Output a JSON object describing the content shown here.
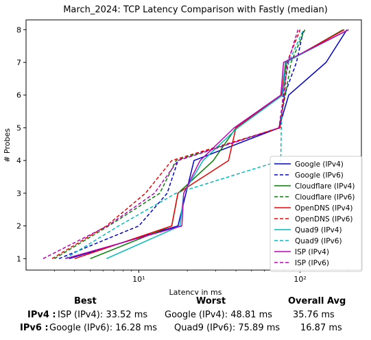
{
  "chart_data": {
    "type": "line",
    "title": "March_2024: TCP Latency Comparison with Fastly (median)",
    "xlabel": "Latency in ms",
    "ylabel": "# Probes",
    "xscale": "log",
    "xlim": [
      2.0,
      240
    ],
    "ylim": [
      0.65,
      8.3
    ],
    "xticks": [
      {
        "value": 10,
        "label": "10¹"
      },
      {
        "value": 100,
        "label": "10²"
      }
    ],
    "yticks": [
      1,
      2,
      3,
      4,
      5,
      6,
      7,
      8
    ],
    "grid": false,
    "legend_position": "lower-right",
    "series": [
      {
        "name": "Google (IPv4)",
        "color": "#0000cc",
        "dash": "solid",
        "x": [
          3.7,
          17.5,
          22.0,
          74.0,
          85.0,
          145.0,
          195.0
        ],
        "y": [
          1,
          2,
          4,
          5,
          6,
          7,
          8
        ]
      },
      {
        "name": "Google (IPv6)",
        "color": "#0000cc",
        "dash": "dashed",
        "x": [
          3.2,
          10.0,
          15.0,
          17.5,
          75.0,
          80.0,
          95.0,
          105.0
        ],
        "y": [
          1,
          2,
          3,
          4,
          5,
          6,
          7,
          8
        ]
      },
      {
        "name": "Cloudflare (IPv4)",
        "color": "#007f00",
        "dash": "solid",
        "x": [
          5.0,
          16.0,
          17.5,
          29.0,
          40.0,
          78.0,
          82.0,
          185.0
        ],
        "y": [
          1,
          2,
          3,
          4,
          5,
          6,
          7,
          8
        ]
      },
      {
        "name": "Cloudflare (IPv6)",
        "color": "#007f00",
        "dash": "dashed",
        "x": [
          3.0,
          6.5,
          13.5,
          17.0,
          74.0,
          81.0,
          88.0,
          107.0
        ],
        "y": [
          1,
          2,
          3,
          4,
          5,
          6,
          7,
          8
        ]
      },
      {
        "name": "OpenDNS (IPv4)",
        "color": "#ee0000",
        "dash": "solid",
        "x": [
          4.0,
          16.0,
          17.5,
          36.0,
          40.0,
          77.0,
          81.0,
          188.0
        ],
        "y": [
          1,
          2,
          3,
          4,
          5,
          6,
          7,
          8
        ]
      },
      {
        "name": "OpenDNS (IPv6)",
        "color": "#ee0000",
        "dash": "dashed",
        "x": [
          2.9,
          6.3,
          11.0,
          16.0,
          75.0,
          80.0,
          83.0,
          100.0
        ],
        "y": [
          1,
          2,
          3,
          4,
          5,
          6,
          7,
          8
        ]
      },
      {
        "name": "Quad9 (IPv4)",
        "color": "#00bbbb",
        "dash": "solid",
        "x": [
          6.3,
          18.0,
          19.0,
          25.0,
          41.0,
          78.0,
          81.0,
          200.0
        ],
        "y": [
          1,
          2,
          3,
          4,
          5,
          6,
          7,
          8
        ]
      },
      {
        "name": "Quad9 (IPv6)",
        "color": "#00bbbb",
        "dash": "dashed",
        "x": [
          3.5,
          7.5,
          17.0,
          75.9,
          76.5,
          78.0,
          85.0,
          105.0
        ],
        "y": [
          1,
          2,
          3,
          4,
          5,
          6,
          7,
          8
        ]
      },
      {
        "name": "ISP (IPv4)",
        "color": "#bb00bb",
        "dash": "solid",
        "x": [
          3.5,
          18.5,
          19.0,
          24.0,
          39.0,
          76.0,
          79.0,
          200.0
        ],
        "y": [
          1,
          2,
          3,
          4,
          5,
          6,
          7,
          8
        ]
      },
      {
        "name": "ISP (IPv6)",
        "color": "#bb00bb",
        "dash": "dashed",
        "x": [
          2.55,
          6.4,
          12.5,
          17.5,
          74.0,
          79.0,
          84.0,
          97.0
        ],
        "y": [
          1,
          2,
          3,
          4,
          5,
          6,
          7,
          8
        ]
      }
    ]
  },
  "summary": {
    "headers": {
      "best": "Best",
      "worst": "Worst",
      "avg": "Overall Avg"
    },
    "rows": [
      {
        "label": "IPv4 :",
        "best": "ISP (IPv4): 33.52 ms",
        "worst": "Google (IPv4): 48.81 ms",
        "avg": "35.76 ms"
      },
      {
        "label": "IPv6 :",
        "best": "Google (IPv6): 16.28 ms",
        "worst": "Quad9 (IPv6): 75.89 ms",
        "avg": "16.87 ms"
      }
    ]
  }
}
